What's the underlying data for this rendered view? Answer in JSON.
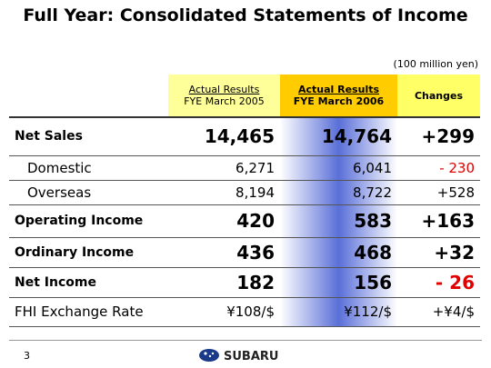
{
  "header": {
    "title": "Full Year: Consolidated Statements of Income",
    "unit": "(100 million yen)"
  },
  "table": {
    "columns": [
      [
        "Actual Results",
        "FYE March 2005"
      ],
      [
        "Actual Results",
        "FYE March 2006"
      ],
      [
        "Changes"
      ]
    ],
    "rows": [
      [
        "Net Sales",
        "14,465",
        "14,764",
        "+299"
      ],
      [
        "Domestic",
        "6,271",
        "6,041",
        "- 230"
      ],
      [
        "Overseas",
        "8,194",
        "8,722",
        "+528"
      ],
      [
        "Operating Income",
        "420",
        "583",
        "+163"
      ],
      [
        "Ordinary Income",
        "436",
        "468",
        "+32"
      ],
      [
        "Net Income",
        "182",
        "156",
        "- 26"
      ],
      [
        "FHI Exchange Rate",
        "¥108/$",
        "¥112/$",
        "+¥4/$"
      ]
    ]
  },
  "footer": {
    "page": "3",
    "logo": "SUBARU"
  }
}
